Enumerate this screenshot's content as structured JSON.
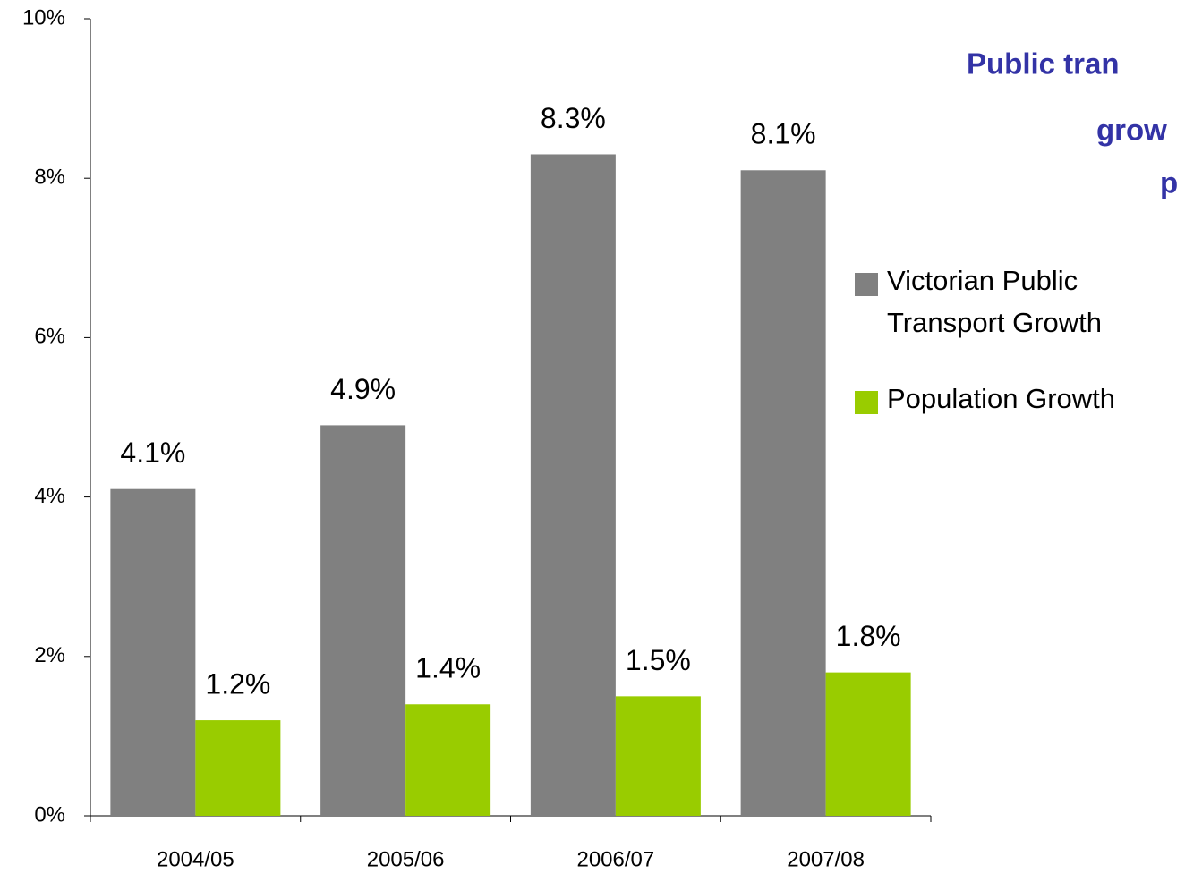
{
  "chart_data": {
    "type": "bar",
    "title_lines": [
      "Public tran",
      "grow",
      "p"
    ],
    "categories": [
      "2004/05",
      "2005/06",
      "2006/07",
      "2007/08"
    ],
    "series": [
      {
        "name": "Victorian Public Transport Growth",
        "color": "#808080",
        "values": [
          4.1,
          4.9,
          8.3,
          8.1
        ],
        "value_labels": [
          "4.1%",
          "4.9%",
          "8.3%",
          "8.1%"
        ]
      },
      {
        "name": "Population Growth",
        "color": "#99cc00",
        "values": [
          1.2,
          1.4,
          1.5,
          1.8
        ],
        "value_labels": [
          "1.2%",
          "1.4%",
          "1.5%",
          "1.8%"
        ]
      }
    ],
    "ylim": [
      0,
      10
    ],
    "yticks": [
      {
        "value": 0,
        "label": "0%"
      },
      {
        "value": 2,
        "label": "2%"
      },
      {
        "value": 4,
        "label": "4%"
      },
      {
        "value": 6,
        "label": "6%"
      },
      {
        "value": 8,
        "label": "8%"
      },
      {
        "value": 10,
        "label": "10%"
      }
    ],
    "legend": "right"
  }
}
